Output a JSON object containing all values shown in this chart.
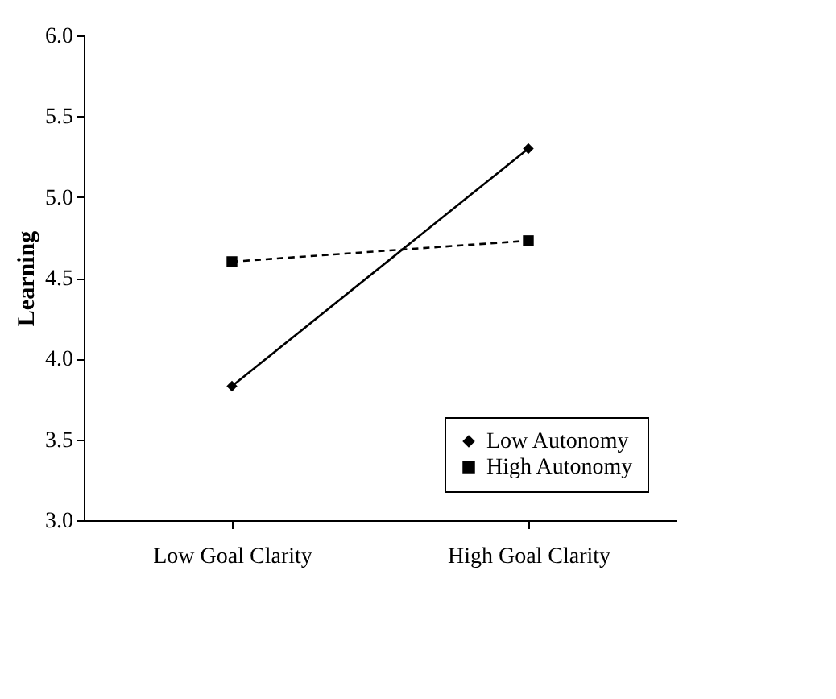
{
  "chart_data": {
    "type": "line",
    "ylabel": "Learning",
    "categories": [
      "Low Goal Clarity",
      "High Goal Clarity"
    ],
    "series": [
      {
        "name": "Low Autonomy",
        "color": "#000000",
        "values": [
          3.83,
          5.3
        ],
        "marker": "diamond",
        "line_style": "solid"
      },
      {
        "name": "High Autonomy",
        "color": "#000000",
        "values": [
          4.6,
          4.73
        ],
        "marker": "square",
        "line_style": "dashed"
      }
    ],
    "ylim": [
      3,
      6
    ],
    "yticks": [
      {
        "value": 3,
        "label": "3.0"
      },
      3.5,
      {
        "value": 4,
        "label": "4.0"
      },
      4.5,
      {
        "value": 5,
        "label": "5.0"
      },
      5.5,
      {
        "value": 6,
        "label": "6.0"
      }
    ],
    "grid": false,
    "legend": "bottom right"
  }
}
